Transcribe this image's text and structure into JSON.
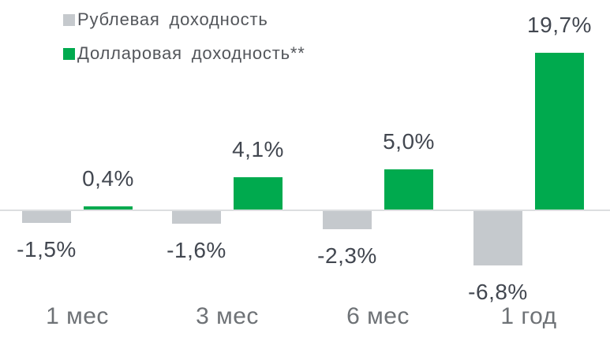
{
  "chart_data": {
    "type": "bar",
    "title": "",
    "xlabel": "",
    "ylabel": "",
    "categories": [
      "1 мес",
      "3 мес",
      "6 мес",
      "1 год"
    ],
    "series": [
      {
        "name": "Рублевая доходность",
        "color": "#c5c9cd",
        "values": [
          -1.5,
          -1.6,
          -2.3,
          -6.8
        ],
        "labels": [
          "-1,5%",
          "-1,6%",
          "-2,3%",
          "-6,8%"
        ]
      },
      {
        "name": "Долларовая доходность**",
        "color": "#00aa4e",
        "values": [
          0.4,
          4.1,
          5.0,
          19.7
        ],
        "labels": [
          "0,4%",
          "4,1%",
          "5,0%",
          "19,7%"
        ]
      }
    ],
    "ylim": [
      -8,
      22
    ],
    "grid": false,
    "legend_position": "top-left",
    "colors": {
      "axis_line": "#dcdee0",
      "value_label": "#424750",
      "category_label": "#6e7276",
      "legend_label": "#53565b"
    }
  }
}
